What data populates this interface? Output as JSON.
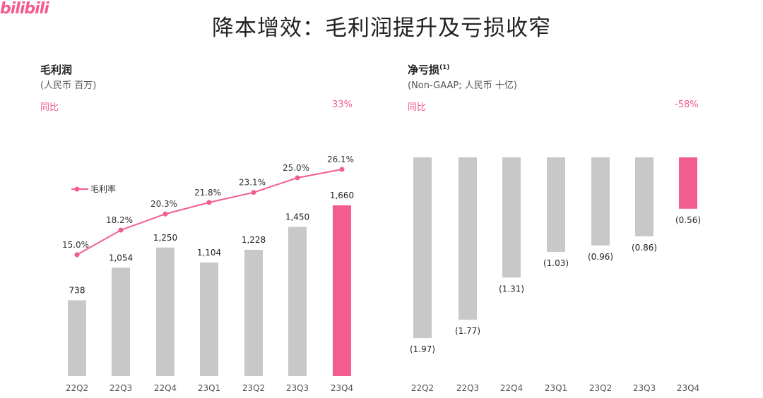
{
  "brand": {
    "logo_text": "bilibili"
  },
  "page": {
    "title": "降本增效：毛利润提升及亏损收窄"
  },
  "colors": {
    "accent": "#f25d8e",
    "bar_grey": "#c8c8c8"
  },
  "chart_data": [
    {
      "type": "bar",
      "title": "毛利润",
      "subtitle": "(人民币 百万)",
      "yoy_label": "同比",
      "yoy_value": "33%",
      "categories": [
        "22Q2",
        "22Q3",
        "22Q4",
        "23Q1",
        "23Q2",
        "23Q3",
        "23Q4"
      ],
      "series": [
        {
          "values": [
            738,
            1054,
            1250,
            1104,
            1228,
            1450,
            1660
          ],
          "labels": [
            "738",
            "1,054",
            "1,250",
            "1,104",
            "1,228",
            "1,450",
            "1,660"
          ],
          "highlight_index": 6
        },
        {
          "name": "毛利率",
          "type": "line",
          "values": [
            15.0,
            18.2,
            20.3,
            21.8,
            23.1,
            25.0,
            26.1
          ],
          "labels": [
            "15.0%",
            "18.2%",
            "20.3%",
            "21.8%",
            "23.1%",
            "25.0%",
            "26.1%"
          ]
        }
      ],
      "legend": "left"
    },
    {
      "type": "bar",
      "title": "净亏损",
      "title_superscript": "(1)",
      "subtitle": "(Non-GAAP; 人民币 十亿)",
      "yoy_label": "同比",
      "yoy_value": "-58%",
      "categories": [
        "22Q2",
        "22Q3",
        "22Q4",
        "23Q1",
        "23Q2",
        "23Q3",
        "23Q4"
      ],
      "series": [
        {
          "values": [
            -1.97,
            -1.77,
            -1.31,
            -1.03,
            -0.96,
            -0.86,
            -0.56
          ],
          "labels": [
            "(1.97)",
            "(1.77)",
            "(1.31)",
            "(1.03)",
            "(0.96)",
            "(0.86)",
            "(0.56)"
          ],
          "highlight_index": 6
        }
      ]
    }
  ]
}
